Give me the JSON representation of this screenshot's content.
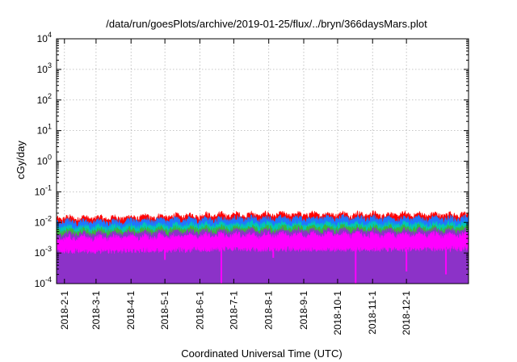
{
  "chart_data": {
    "type": "area",
    "title": "/data/run/goesPlots/archive/2019-01-25/flux/../bryn/366daysMars.plot",
    "xlabel": "Coordinated Universal Time (UTC)",
    "ylabel": "cGy/day",
    "y_scale": "log",
    "ylim": [
      0.0001,
      10000
    ],
    "xlim": [
      "2018-01-25",
      "2019-01-25"
    ],
    "grid": true,
    "legend": "none",
    "y_ticks": [
      {
        "base": "10",
        "exp": "-4"
      },
      {
        "base": "10",
        "exp": "-3"
      },
      {
        "base": "10",
        "exp": "-2"
      },
      {
        "base": "10",
        "exp": "-1"
      },
      {
        "base": "10",
        "exp": "0"
      },
      {
        "base": "10",
        "exp": "1"
      },
      {
        "base": "10",
        "exp": "2"
      },
      {
        "base": "10",
        "exp": "3"
      },
      {
        "base": "10",
        "exp": "4"
      }
    ],
    "x_ticks": [
      {
        "label": "2018-2-1",
        "date": "2018-02-01"
      },
      {
        "label": "2018-3-1",
        "date": "2018-03-01"
      },
      {
        "label": "2018-4-1",
        "date": "2018-04-01"
      },
      {
        "label": "2018-5-1",
        "date": "2018-05-01"
      },
      {
        "label": "2018-6-1",
        "date": "2018-06-01"
      },
      {
        "label": "2018-7-1",
        "date": "2018-07-01"
      },
      {
        "label": "2018-8-1",
        "date": "2018-08-01"
      },
      {
        "label": "2018-9-1",
        "date": "2018-09-01"
      },
      {
        "label": "2018-10-1",
        "date": "2018-10-01"
      },
      {
        "label": "2018-11-1",
        "date": "2018-11-01"
      },
      {
        "label": "2018-12-1",
        "date": "2018-12-01"
      }
    ],
    "series": [
      {
        "color": "#ff0000",
        "x": [
          "2018-01-25",
          "2018-02-15",
          "2018-03-15",
          "2018-04-15",
          "2018-05-15",
          "2018-06-15",
          "2018-07-15",
          "2018-08-15",
          "2018-09-15",
          "2018-10-15",
          "2018-11-15",
          "2018-12-15",
          "2019-01-25"
        ],
        "y": [
          0.0125,
          0.0125,
          0.0125,
          0.0135,
          0.0145,
          0.0155,
          0.016,
          0.016,
          0.0165,
          0.0165,
          0.016,
          0.016,
          0.016
        ]
      },
      {
        "color": "#1e78ff",
        "x": [
          "2018-01-25",
          "2018-02-15",
          "2018-03-15",
          "2018-04-15",
          "2018-05-15",
          "2018-06-15",
          "2018-07-15",
          "2018-08-15",
          "2018-09-15",
          "2018-10-15",
          "2018-11-15",
          "2018-12-15",
          "2019-01-25"
        ],
        "y": [
          0.0095,
          0.0095,
          0.0095,
          0.0105,
          0.011,
          0.0115,
          0.012,
          0.012,
          0.0125,
          0.0125,
          0.012,
          0.012,
          0.012
        ]
      },
      {
        "color": "#00c8b4",
        "x": [
          "2018-01-25",
          "2018-02-15",
          "2018-03-15",
          "2018-04-15",
          "2018-05-15",
          "2018-06-15",
          "2018-07-15",
          "2018-08-15",
          "2018-09-15",
          "2018-10-15",
          "2018-11-15",
          "2018-12-15",
          "2019-01-25"
        ],
        "y": [
          0.0062,
          0.0062,
          0.0062,
          0.0068,
          0.0072,
          0.0075,
          0.0078,
          0.0078,
          0.008,
          0.008,
          0.0078,
          0.0078,
          0.0078
        ]
      },
      {
        "color": "#3cb43c",
        "x": [
          "2018-01-25",
          "2018-02-15",
          "2018-03-15",
          "2018-04-15",
          "2018-05-15",
          "2018-06-15",
          "2018-07-15",
          "2018-08-15",
          "2018-09-15",
          "2018-10-15",
          "2018-11-15",
          "2018-12-15",
          "2019-01-25"
        ],
        "y": [
          0.0048,
          0.0048,
          0.0048,
          0.0052,
          0.0055,
          0.0058,
          0.006,
          0.006,
          0.0062,
          0.0062,
          0.006,
          0.006,
          0.006
        ]
      },
      {
        "color": "#8c32c8",
        "x": [
          "2018-01-25",
          "2018-02-15",
          "2018-03-15",
          "2018-04-15",
          "2018-05-15",
          "2018-06-15",
          "2018-07-15",
          "2018-08-15",
          "2018-09-15",
          "2018-10-15",
          "2018-11-15",
          "2018-12-15",
          "2019-01-25"
        ],
        "y": [
          0.0038,
          0.0038,
          0.0038,
          0.0041,
          0.0043,
          0.0045,
          0.0047,
          0.0047,
          0.0048,
          0.0048,
          0.0047,
          0.0047,
          0.0047
        ]
      },
      {
        "color": "#ff00ff",
        "x": [
          "2018-01-25",
          "2018-02-15",
          "2018-03-15",
          "2018-04-15",
          "2018-05-15",
          "2018-06-15",
          "2018-07-15",
          "2018-08-15",
          "2018-09-15",
          "2018-10-15",
          "2018-11-15",
          "2018-12-15",
          "2019-01-25"
        ],
        "y": [
          0.0028,
          0.0028,
          0.0028,
          0.003,
          0.0032,
          0.0034,
          0.0035,
          0.0035,
          0.0036,
          0.0036,
          0.0035,
          0.0035,
          0.0035
        ],
        "floor": [
          0.0012,
          0.0012,
          0.0012,
          0.0013,
          0.0013,
          0.0014,
          0.0014,
          0.0014,
          0.0014,
          0.0014,
          0.0014,
          0.0014,
          0.0014
        ],
        "dips": [
          {
            "date": "2018-05-01",
            "y": 0.0006
          },
          {
            "date": "2018-06-20",
            "y": 0.0001
          },
          {
            "date": "2018-08-05",
            "y": 0.0007
          },
          {
            "date": "2018-10-17",
            "y": 0.0001
          },
          {
            "date": "2018-12-01",
            "y": 0.00025
          },
          {
            "date": "2019-01-05",
            "y": 0.0002
          }
        ]
      }
    ]
  }
}
